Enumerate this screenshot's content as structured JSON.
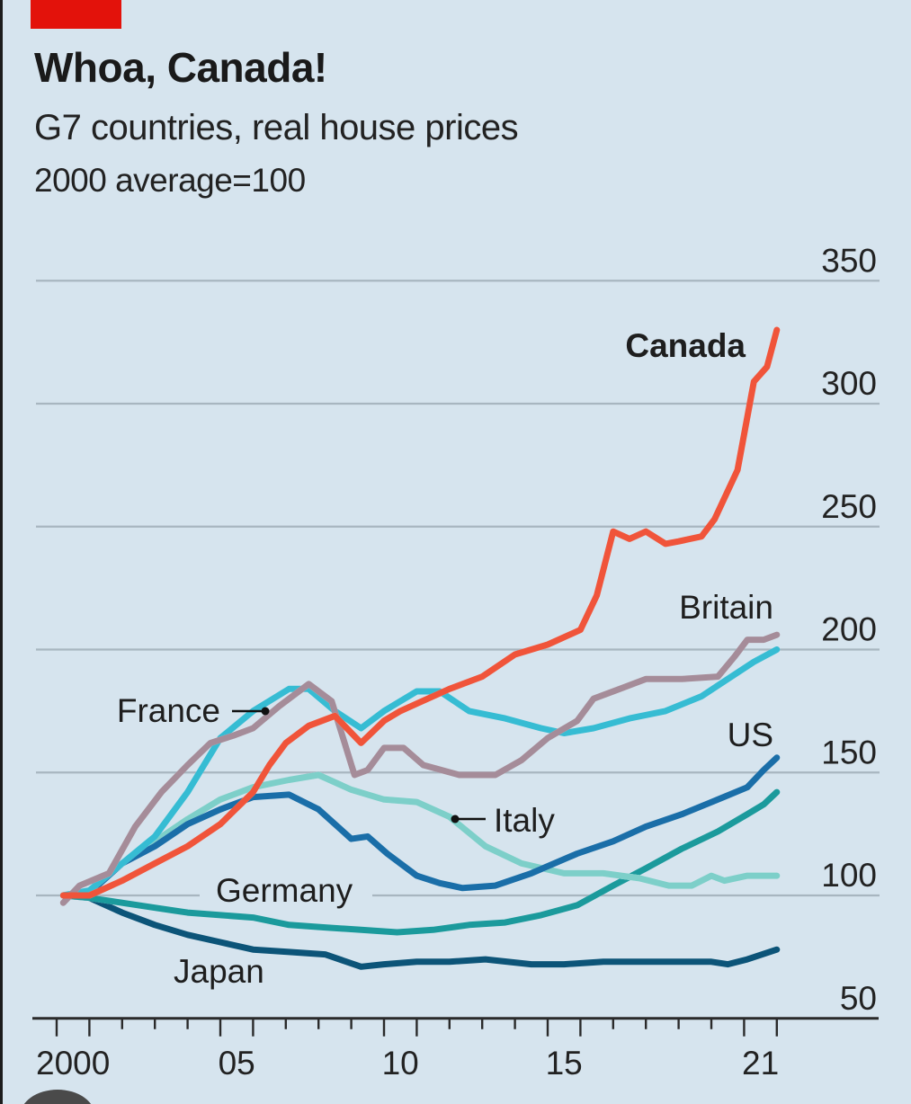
{
  "header": {
    "title": "Whoa, Canada!",
    "subtitle": "G7 countries, real house prices",
    "unit_note": "2000 average=100"
  },
  "colors": {
    "background": "#d6e4ee",
    "brand_tag": "#e3120b",
    "gridline": "#a8b6c0"
  },
  "chart_data": {
    "type": "line",
    "title": "Whoa, Canada!",
    "subtitle": "G7 countries, real house prices",
    "ylabel": "2000 average=100",
    "xlabel": "",
    "xlim": [
      2000,
      2022
    ],
    "ylim": [
      50,
      350
    ],
    "y_ticks": [
      50,
      100,
      150,
      200,
      250,
      300,
      350
    ],
    "y_tick_labels": [
      "50",
      "100",
      "150",
      "200",
      "250",
      "300",
      "350"
    ],
    "y_axis_side": "right",
    "x_tick_labels": [
      {
        "year": 2000,
        "label": "2000"
      },
      {
        "year": 2005,
        "label": "05"
      },
      {
        "year": 2010,
        "label": "10"
      },
      {
        "year": 2015,
        "label": "15"
      },
      {
        "year": 2021,
        "label": "21"
      }
    ],
    "grid": true,
    "legend": "direct-labels",
    "series": [
      {
        "name": "Canada",
        "color": "#f0543a",
        "label_bold": true,
        "x": [
          2000.2,
          2001.0,
          2002.0,
          2003.0,
          2004.0,
          2005.0,
          2006.0,
          2006.5,
          2007.0,
          2007.7,
          2008.5,
          2009.3,
          2010.0,
          2010.5,
          2011.0,
          2012.0,
          2013.0,
          2014.0,
          2015.0,
          2016.0,
          2016.5,
          2017.0,
          2017.5,
          2018.0,
          2018.6,
          2019.0,
          2019.7,
          2020.1,
          2020.8,
          2021.3,
          2021.7,
          2022.0
        ],
        "y": [
          100,
          100,
          106,
          113,
          120,
          129,
          142,
          153,
          162,
          169,
          173,
          162,
          171,
          175,
          178,
          184,
          189,
          198,
          202,
          208,
          222,
          248,
          245,
          248,
          243,
          244,
          246,
          253,
          273,
          309,
          315,
          330
        ]
      },
      {
        "name": "Britain",
        "color": "#a58c99",
        "label_bold": false,
        "x": [
          2000.2,
          2000.7,
          2001.6,
          2002.4,
          2003.2,
          2004.0,
          2004.7,
          2005.4,
          2006.0,
          2006.8,
          2007.7,
          2008.4,
          2009.1,
          2009.5,
          2010.0,
          2010.6,
          2011.2,
          2012.3,
          2013.4,
          2014.2,
          2015.0,
          2015.9,
          2016.4,
          2017.2,
          2018.0,
          2019.1,
          2020.2,
          2020.7,
          2021.1,
          2021.6,
          2022.0
        ],
        "y": [
          97,
          104,
          109,
          128,
          142,
          153,
          162,
          165,
          168,
          177,
          186,
          179,
          149,
          151,
          160,
          160,
          153,
          149,
          149,
          155,
          164,
          171,
          180,
          184,
          188,
          188,
          189,
          197,
          204,
          204,
          206
        ]
      },
      {
        "name": "France",
        "color": "#36bcd3",
        "label_bold": false,
        "x": [
          2000.2,
          2001.0,
          2002.0,
          2003.0,
          2004.0,
          2005.0,
          2006.0,
          2007.1,
          2007.7,
          2008.5,
          2009.3,
          2010.0,
          2011.0,
          2011.7,
          2012.6,
          2013.7,
          2014.8,
          2015.5,
          2016.4,
          2017.5,
          2018.6,
          2019.7,
          2020.5,
          2021.3,
          2022.0
        ],
        "y": [
          100,
          102,
          113,
          124,
          142,
          164,
          175,
          184,
          184,
          175,
          168,
          175,
          183,
          183,
          175,
          172,
          168,
          166,
          168,
          172,
          175,
          181,
          188,
          195,
          200
        ]
      },
      {
        "name": "Italy",
        "color": "#7dcfc9",
        "label_bold": false,
        "x": [
          2000.2,
          2001.0,
          2002.0,
          2003.0,
          2004.0,
          2005.0,
          2006.0,
          2007.1,
          2008.0,
          2009.0,
          2010.0,
          2011.0,
          2012.0,
          2013.1,
          2014.2,
          2015.5,
          2016.7,
          2017.8,
          2018.7,
          2019.4,
          2020.0,
          2020.4,
          2021.1,
          2022.0
        ],
        "y": [
          100,
          101,
          113,
          122,
          131,
          139,
          144,
          147,
          149,
          143,
          139,
          138,
          132,
          120,
          113,
          109,
          109,
          107,
          104,
          104,
          108,
          106,
          108,
          108
        ]
      },
      {
        "name": "US",
        "color": "#1a6ea8",
        "label_bold": false,
        "x": [
          2000.2,
          2001.0,
          2002.0,
          2003.0,
          2004.0,
          2005.0,
          2006.0,
          2007.1,
          2008.0,
          2009.0,
          2009.5,
          2010.1,
          2011.0,
          2011.7,
          2012.4,
          2013.4,
          2014.5,
          2015.9,
          2017.0,
          2018.0,
          2019.1,
          2020.2,
          2021.1,
          2021.6,
          2022.0
        ],
        "y": [
          100,
          101,
          113,
          120,
          129,
          135,
          140,
          141,
          135,
          123,
          124,
          117,
          108,
          105,
          103,
          104,
          109,
          117,
          122,
          128,
          133,
          139,
          144,
          151,
          156
        ]
      },
      {
        "name": "Germany",
        "color": "#1b9a9c",
        "label_bold": false,
        "x": [
          2000.2,
          2001.0,
          2002.0,
          2003.0,
          2004.0,
          2005.0,
          2006.0,
          2007.1,
          2008.2,
          2009.3,
          2010.4,
          2011.5,
          2012.6,
          2013.7,
          2014.8,
          2015.9,
          2017.0,
          2018.0,
          2019.1,
          2020.2,
          2021.1,
          2021.6,
          2022.0
        ],
        "y": [
          100,
          99,
          97,
          95,
          93,
          92,
          91,
          88,
          87,
          86,
          85,
          86,
          88,
          89,
          92,
          96,
          104,
          111,
          119,
          126,
          133,
          137,
          142
        ]
      },
      {
        "name": "Japan",
        "color": "#0c5478",
        "label_bold": false,
        "x": [
          2000.2,
          2001.0,
          2002.0,
          2003.0,
          2004.0,
          2005.0,
          2006.0,
          2007.1,
          2008.2,
          2009.3,
          2010.0,
          2011.0,
          2012.0,
          2013.1,
          2014.5,
          2015.5,
          2016.7,
          2018.0,
          2019.1,
          2020.0,
          2020.5,
          2021.1,
          2022.0
        ],
        "y": [
          100,
          99,
          93,
          88,
          84,
          81,
          78,
          77,
          76,
          71,
          72,
          73,
          73,
          74,
          72,
          72,
          73,
          73,
          73,
          73,
          72,
          74,
          78
        ]
      }
    ]
  }
}
